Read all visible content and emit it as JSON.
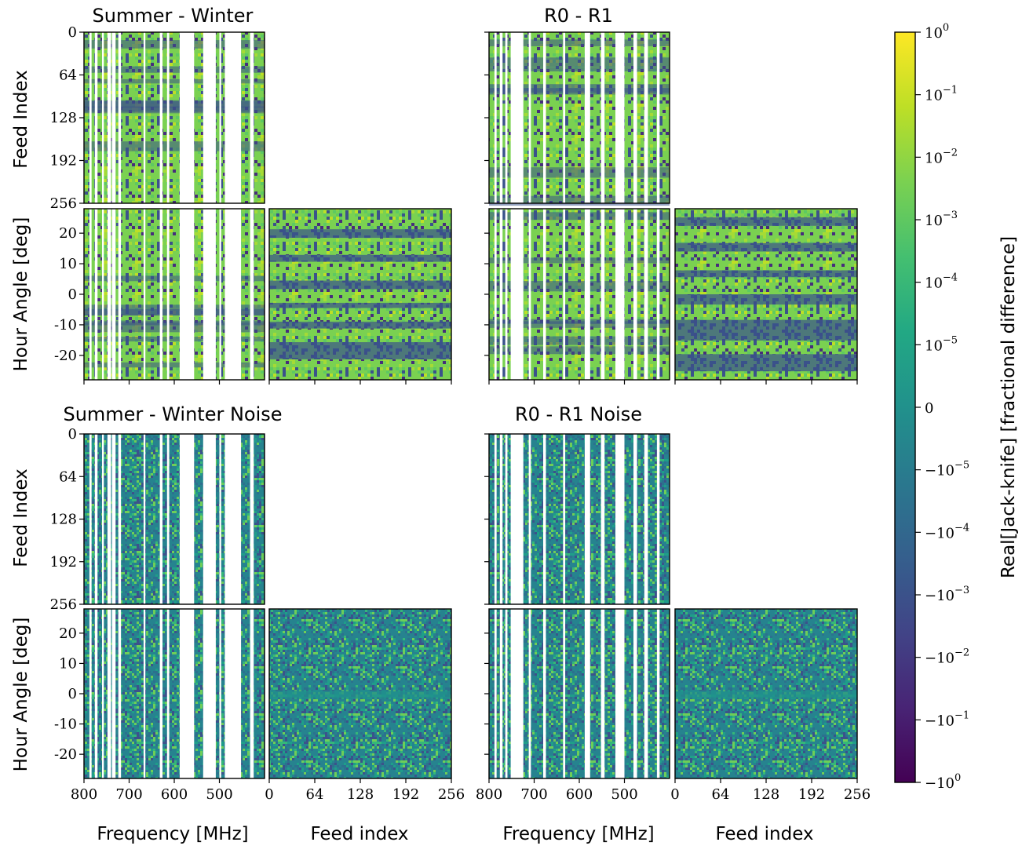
{
  "figure": {
    "panels": [
      {
        "id": "sw",
        "title": "Summer - Winter"
      },
      {
        "id": "r0r1",
        "title": "R0 - R1"
      },
      {
        "id": "swn",
        "title": "Summer - Winter Noise"
      },
      {
        "id": "r0r1n",
        "title": "R0 - R1 Noise"
      }
    ],
    "labels": {
      "feed_index_y": "Feed Index",
      "hour_angle_y": "Hour Angle [deg]",
      "frequency_x": "Frequency [MHz]",
      "feed_index_x": "Feed index",
      "colorbar": "Real[Jack-knife] [fractional difference]"
    }
  },
  "chart_data": [
    {
      "type": "heatmap",
      "title": "Summer - Winter",
      "panels": [
        {
          "view": "feed_vs_frequency",
          "xlabel": "",
          "ylabel": "Feed Index",
          "xlim": [
            800,
            400
          ],
          "ylim": [
            256,
            0
          ],
          "yticks": [
            0,
            64,
            128,
            192,
            256
          ],
          "style": "signal"
        },
        {
          "view": "hour_angle_vs_frequency",
          "xlabel": "",
          "ylabel": "Hour Angle [deg]",
          "xlim": [
            800,
            400
          ],
          "ylim": [
            -28,
            28
          ],
          "yticks": [
            20,
            10,
            0,
            -10,
            -20
          ],
          "style": "signal"
        },
        {
          "view": "hour_angle_vs_feed",
          "xlabel": "",
          "ylabel": "",
          "xlim": [
            0,
            256
          ],
          "ylim": [
            -28,
            28
          ],
          "style": "signal"
        }
      ]
    },
    {
      "type": "heatmap",
      "title": "R0 - R1",
      "panels": [
        {
          "view": "feed_vs_frequency",
          "xlim": [
            800,
            400
          ],
          "ylim": [
            256,
            0
          ],
          "style": "signal"
        },
        {
          "view": "hour_angle_vs_frequency",
          "xlim": [
            800,
            400
          ],
          "ylim": [
            -28,
            28
          ],
          "style": "signal"
        },
        {
          "view": "hour_angle_vs_feed",
          "xlim": [
            0,
            256
          ],
          "ylim": [
            -28,
            28
          ],
          "style": "signal"
        }
      ]
    },
    {
      "type": "heatmap",
      "title": "Summer - Winter Noise",
      "panels": [
        {
          "view": "feed_vs_frequency",
          "xlabel": "",
          "ylabel": "Feed Index",
          "xlim": [
            800,
            400
          ],
          "ylim": [
            256,
            0
          ],
          "yticks": [
            0,
            64,
            128,
            192,
            256
          ],
          "style": "noise"
        },
        {
          "view": "hour_angle_vs_frequency",
          "xlabel": "Frequency [MHz]",
          "ylabel": "Hour Angle [deg]",
          "xlim": [
            800,
            400
          ],
          "ylim": [
            -28,
            28
          ],
          "xticks": [
            800,
            700,
            600,
            500
          ],
          "yticks": [
            20,
            10,
            0,
            -10,
            -20
          ],
          "style": "noise"
        },
        {
          "view": "hour_angle_vs_feed",
          "xlabel": "Feed index",
          "ylabel": "",
          "xlim": [
            0,
            256
          ],
          "ylim": [
            -28,
            28
          ],
          "xticks": [
            0,
            64,
            128,
            192,
            256
          ],
          "style": "noise"
        }
      ]
    },
    {
      "type": "heatmap",
      "title": "R0 - R1 Noise",
      "panels": [
        {
          "view": "feed_vs_frequency",
          "xlim": [
            800,
            400
          ],
          "ylim": [
            256,
            0
          ],
          "style": "noise"
        },
        {
          "view": "hour_angle_vs_frequency",
          "xlabel": "Frequency [MHz]",
          "xlim": [
            800,
            400
          ],
          "ylim": [
            -28,
            28
          ],
          "xticks": [
            800,
            700,
            600,
            500
          ],
          "style": "noise"
        },
        {
          "view": "hour_angle_vs_feed",
          "xlabel": "Feed index",
          "xlim": [
            0,
            256
          ],
          "ylim": [
            -28,
            28
          ],
          "xticks": [
            0,
            64,
            128,
            192,
            256
          ],
          "style": "noise"
        }
      ]
    },
    {
      "type": "colorbar",
      "label": "Real[Jack-knife] [fractional difference]",
      "colormap": "viridis",
      "scale": "symlog",
      "range": [
        -1,
        1
      ],
      "tick_labels": [
        "10^0",
        "10^-1",
        "10^-2",
        "10^-3",
        "10^-4",
        "10^-5",
        "0",
        "-10^-5",
        "-10^-4",
        "-10^-3",
        "-10^-2",
        "-10^-1",
        "-10^0"
      ]
    }
  ],
  "ticks": {
    "feed": [
      "0",
      "64",
      "128",
      "192",
      "256"
    ],
    "hour_angle": [
      "20",
      "10",
      "0",
      "-10",
      "-20"
    ],
    "frequency": [
      "800",
      "700",
      "600",
      "500"
    ],
    "feed_x": [
      "0",
      "64",
      "128",
      "192",
      "256"
    ],
    "cbar_mant": [
      "10",
      "10",
      "10",
      "10",
      "10",
      "10",
      "0",
      "−10",
      "−10",
      "−10",
      "−10",
      "−10",
      "−10"
    ],
    "cbar_exp": [
      "0",
      "−1",
      "−2",
      "−3",
      "−4",
      "−5",
      "",
      "−5",
      "−4",
      "−3",
      "−2",
      "−1",
      "0"
    ]
  },
  "colors": {
    "viridis_low": "#440154",
    "viridis_mid": "#21918c",
    "viridis_high": "#fde725",
    "dark": "#3b528b",
    "green": "#7ad151"
  }
}
